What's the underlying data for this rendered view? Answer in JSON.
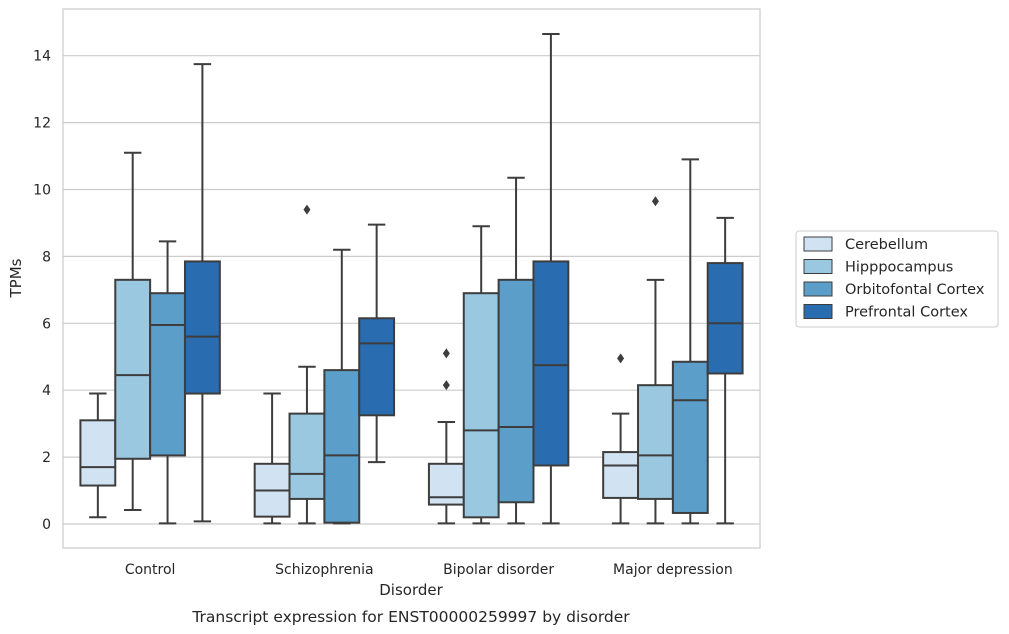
{
  "chart_data": {
    "type": "box",
    "title": "",
    "caption": "Transcript expression for ENST00000259997 by disorder",
    "xlabel": "Disorder",
    "ylabel": "TPMs",
    "ylim": [
      -0.7,
      15.4
    ],
    "yticks": [
      0,
      2,
      4,
      6,
      8,
      10,
      12,
      14
    ],
    "grid": "horizontal",
    "legend_position": "right",
    "categories": [
      "Control",
      "Schizophrenia",
      "Bipolar disorder",
      "Major depression"
    ],
    "series": [
      {
        "name": "Cerebellum",
        "color": "#d1e2f2",
        "boxes": [
          {
            "whisker_low": 0.2,
            "q1": 1.15,
            "median": 1.7,
            "q3": 3.1,
            "whisker_high": 3.9,
            "outliers": []
          },
          {
            "whisker_low": 0.02,
            "q1": 0.22,
            "median": 1.0,
            "q3": 1.8,
            "whisker_high": 3.9,
            "outliers": []
          },
          {
            "whisker_low": 0.02,
            "q1": 0.58,
            "median": 0.8,
            "q3": 1.8,
            "whisker_high": 3.05,
            "outliers": [
              4.15,
              5.1
            ]
          },
          {
            "whisker_low": 0.02,
            "q1": 0.78,
            "median": 1.75,
            "q3": 2.15,
            "whisker_high": 3.3,
            "outliers": [
              4.95
            ]
          }
        ]
      },
      {
        "name": "Hipppocampus",
        "color": "#9ac8e0",
        "boxes": [
          {
            "whisker_low": 0.42,
            "q1": 1.95,
            "median": 4.45,
            "q3": 7.3,
            "whisker_high": 11.1,
            "outliers": []
          },
          {
            "whisker_low": 0.02,
            "q1": 0.75,
            "median": 1.5,
            "q3": 3.3,
            "whisker_high": 4.7,
            "outliers": [
              9.4
            ]
          },
          {
            "whisker_low": 0.02,
            "q1": 0.2,
            "median": 2.8,
            "q3": 6.9,
            "whisker_high": 8.9,
            "outliers": []
          },
          {
            "whisker_low": 0.02,
            "q1": 0.75,
            "median": 2.05,
            "q3": 4.15,
            "whisker_high": 7.3,
            "outliers": [
              9.65
            ]
          }
        ]
      },
      {
        "name": "Orbitofontal Cortex",
        "color": "#5a9ec9",
        "boxes": [
          {
            "whisker_low": 0.02,
            "q1": 2.05,
            "median": 5.95,
            "q3": 6.9,
            "whisker_high": 8.45,
            "outliers": []
          },
          {
            "whisker_low": 0.02,
            "q1": 0.04,
            "median": 2.05,
            "q3": 4.6,
            "whisker_high": 8.2,
            "outliers": []
          },
          {
            "whisker_low": 0.02,
            "q1": 0.65,
            "median": 2.9,
            "q3": 7.3,
            "whisker_high": 10.35,
            "outliers": []
          },
          {
            "whisker_low": 0.02,
            "q1": 0.33,
            "median": 3.7,
            "q3": 4.85,
            "whisker_high": 10.9,
            "outliers": []
          }
        ]
      },
      {
        "name": "Prefrontal Cortex",
        "color": "#2a6cb0",
        "boxes": [
          {
            "whisker_low": 0.08,
            "q1": 3.9,
            "median": 5.6,
            "q3": 7.85,
            "whisker_high": 13.75,
            "outliers": []
          },
          {
            "whisker_low": 1.85,
            "q1": 3.25,
            "median": 5.4,
            "q3": 6.15,
            "whisker_high": 8.95,
            "outliers": []
          },
          {
            "whisker_low": 0.02,
            "q1": 1.75,
            "median": 4.75,
            "q3": 7.85,
            "whisker_high": 14.65,
            "outliers": []
          },
          {
            "whisker_low": 0.02,
            "q1": 4.5,
            "median": 6.0,
            "q3": 7.8,
            "whisker_high": 9.15,
            "outliers": []
          }
        ]
      }
    ]
  }
}
